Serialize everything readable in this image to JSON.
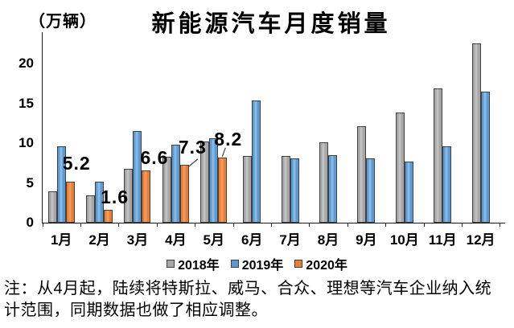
{
  "title": "新能源汽车月度销量",
  "unit_label": "（万辆）",
  "note": {
    "line1": "注：从4月起，陆续将特斯拉、威马、合众、理想等汽车企业纳入统",
    "line2": "计范围，同期数据也做了相应调整。"
  },
  "colors": {
    "ink": "#000000",
    "bar_outline": "#404040",
    "series_2018": "#A6A6A6",
    "series_2019": "#5B9BD5",
    "series_2020": "#ED7D31"
  },
  "chart_data": {
    "type": "bar",
    "title": "新能源汽车月度销量",
    "unit": "万辆",
    "xlabel": "",
    "ylabel": "（万辆）",
    "ylim": [
      0,
      24
    ],
    "y_ticks": [
      0,
      5,
      10,
      15,
      20
    ],
    "grid": false,
    "legend_position": "bottom",
    "categories": [
      "1月",
      "2月",
      "3月",
      "4月",
      "5月",
      "6月",
      "7月",
      "8月",
      "9月",
      "10月",
      "11月",
      "12月"
    ],
    "series": [
      {
        "name": "2018年",
        "color": "#A6A6A6",
        "color_light": "#C2C2C2",
        "values": [
          3.9,
          3.4,
          6.8,
          8.3,
          10.2,
          8.4,
          8.4,
          10.1,
          12.1,
          13.8,
          16.9,
          22.5
        ]
      },
      {
        "name": "2019年",
        "color": "#5B9BD5",
        "color_light": "#8ABAE4",
        "values": [
          9.6,
          5.2,
          11.5,
          9.8,
          10.6,
          15.4,
          8.1,
          8.5,
          8.1,
          7.7,
          9.6,
          16.5
        ]
      },
      {
        "name": "2020年",
        "color": "#ED7D31",
        "color_light": "#F39C62",
        "values": [
          5.2,
          1.6,
          6.6,
          7.3,
          8.2,
          null,
          null,
          null,
          null,
          null,
          null,
          null
        ]
      }
    ],
    "data_labels": {
      "series": "2020年",
      "values": [
        "5.2",
        "1.6",
        "6.6",
        "7.3",
        "8.2"
      ]
    }
  }
}
